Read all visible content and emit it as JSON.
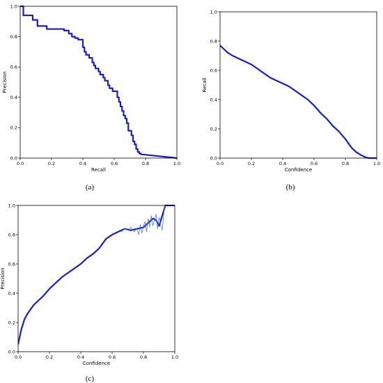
{
  "chart_data": [
    {
      "panel": "(a)",
      "type": "line",
      "xlabel": "Recall",
      "ylabel": "Precision",
      "xlim": [
        0,
        1
      ],
      "ylim": [
        0,
        1
      ],
      "xticks": [
        "0.0",
        "0.2",
        "0.4",
        "0.6",
        "0.8",
        "1.0"
      ],
      "yticks": [
        "0.0",
        "0.2",
        "0.4",
        "0.6",
        "0.8",
        "1.0"
      ],
      "grid": false,
      "series": [
        {
          "color": "#1a1adb",
          "style": "step",
          "x": [
            0.0,
            0.02,
            0.02,
            0.08,
            0.08,
            0.11,
            0.11,
            0.17,
            0.17,
            0.28,
            0.28,
            0.31,
            0.31,
            0.33,
            0.33,
            0.35,
            0.35,
            0.37,
            0.37,
            0.4,
            0.4,
            0.41,
            0.41,
            0.42,
            0.42,
            0.44,
            0.44,
            0.46,
            0.46,
            0.47,
            0.47,
            0.48,
            0.48,
            0.5,
            0.5,
            0.51,
            0.51,
            0.53,
            0.53,
            0.54,
            0.54,
            0.56,
            0.56,
            0.57,
            0.57,
            0.59,
            0.59,
            0.62,
            0.62,
            0.63,
            0.63,
            0.64,
            0.64,
            0.65,
            0.65,
            0.66,
            0.66,
            0.67,
            0.67,
            0.68,
            0.68,
            0.69,
            0.69,
            0.71,
            0.71,
            0.72,
            0.72,
            0.73,
            0.73,
            0.74,
            0.74,
            0.75,
            0.75,
            0.76,
            0.76,
            0.77,
            0.77,
            1.0
          ],
          "y": [
            1.0,
            1.0,
            0.94,
            0.94,
            0.91,
            0.91,
            0.87,
            0.87,
            0.85,
            0.85,
            0.84,
            0.84,
            0.82,
            0.82,
            0.8,
            0.8,
            0.79,
            0.79,
            0.78,
            0.78,
            0.73,
            0.73,
            0.7,
            0.7,
            0.68,
            0.68,
            0.66,
            0.66,
            0.63,
            0.63,
            0.61,
            0.61,
            0.59,
            0.59,
            0.57,
            0.57,
            0.55,
            0.55,
            0.53,
            0.53,
            0.51,
            0.51,
            0.48,
            0.48,
            0.46,
            0.46,
            0.44,
            0.44,
            0.4,
            0.4,
            0.37,
            0.37,
            0.34,
            0.34,
            0.31,
            0.31,
            0.28,
            0.28,
            0.26,
            0.26,
            0.23,
            0.23,
            0.18,
            0.18,
            0.15,
            0.15,
            0.11,
            0.11,
            0.09,
            0.09,
            0.06,
            0.06,
            0.04,
            0.04,
            0.03,
            0.03,
            0.025,
            0.0
          ]
        }
      ]
    },
    {
      "panel": "(b)",
      "type": "line",
      "xlabel": "Confidence",
      "ylabel": "Recall",
      "xlim": [
        0,
        1
      ],
      "ylim": [
        0,
        1
      ],
      "xticks": [
        "0.0",
        "0.2",
        "0.4",
        "0.6",
        "0.8",
        "1.0"
      ],
      "yticks": [
        "0.0",
        "0.2",
        "0.4",
        "0.6",
        "0.8",
        "1.0"
      ],
      "grid": false,
      "series": [
        {
          "color": "#1a1adb",
          "x": [
            0.0,
            0.02,
            0.05,
            0.08,
            0.12,
            0.16,
            0.2,
            0.24,
            0.28,
            0.32,
            0.36,
            0.4,
            0.44,
            0.48,
            0.52,
            0.56,
            0.6,
            0.64,
            0.68,
            0.72,
            0.76,
            0.8,
            0.84,
            0.87,
            0.9,
            0.93,
            0.95,
            0.97,
            1.0
          ],
          "y": [
            0.77,
            0.75,
            0.72,
            0.7,
            0.68,
            0.66,
            0.64,
            0.61,
            0.58,
            0.55,
            0.53,
            0.51,
            0.49,
            0.46,
            0.43,
            0.4,
            0.36,
            0.31,
            0.27,
            0.22,
            0.18,
            0.13,
            0.07,
            0.04,
            0.02,
            0.005,
            0.0,
            0.0,
            0.0
          ]
        }
      ]
    },
    {
      "panel": "(c)",
      "type": "line",
      "xlabel": "Confidence",
      "ylabel": "Precision",
      "xlim": [
        0,
        1
      ],
      "ylim": [
        0,
        1
      ],
      "xticks": [
        "0.0",
        "0.2",
        "0.4",
        "0.6",
        "0.8",
        "1.0"
      ],
      "yticks": [
        "0.0",
        "0.2",
        "0.4",
        "0.6",
        "0.8",
        "1.0"
      ],
      "grid": false,
      "series": [
        {
          "style": "smoothed",
          "color": "#1a1adb",
          "x": [
            0.0,
            0.01,
            0.02,
            0.04,
            0.06,
            0.08,
            0.1,
            0.13,
            0.16,
            0.2,
            0.24,
            0.28,
            0.32,
            0.36,
            0.4,
            0.44,
            0.48,
            0.52,
            0.56,
            0.6,
            0.64,
            0.68,
            0.72,
            0.76,
            0.8,
            0.83,
            0.86,
            0.88,
            0.9,
            0.92,
            0.94,
            0.97,
            1.0
          ],
          "y": [
            0.05,
            0.1,
            0.15,
            0.22,
            0.26,
            0.29,
            0.32,
            0.35,
            0.38,
            0.43,
            0.47,
            0.51,
            0.54,
            0.57,
            0.6,
            0.64,
            0.67,
            0.71,
            0.77,
            0.8,
            0.82,
            0.84,
            0.83,
            0.84,
            0.85,
            0.88,
            0.91,
            0.9,
            0.86,
            0.93,
            1.0,
            1.0,
            1.0
          ]
        },
        {
          "style": "raw",
          "color": "#4d7fd4",
          "x": [
            0.66,
            0.68,
            0.7,
            0.72,
            0.74,
            0.76,
            0.77,
            0.78,
            0.79,
            0.8,
            0.81,
            0.82,
            0.83,
            0.84,
            0.85,
            0.86,
            0.87,
            0.88,
            0.89,
            0.9,
            0.91,
            0.92,
            0.93,
            0.94
          ],
          "y": [
            0.82,
            0.84,
            0.83,
            0.85,
            0.82,
            0.84,
            0.8,
            0.87,
            0.81,
            0.86,
            0.89,
            0.82,
            0.91,
            0.85,
            0.93,
            0.86,
            0.9,
            0.94,
            0.84,
            0.92,
            0.87,
            0.83,
            0.95,
            1.0
          ]
        }
      ]
    }
  ]
}
